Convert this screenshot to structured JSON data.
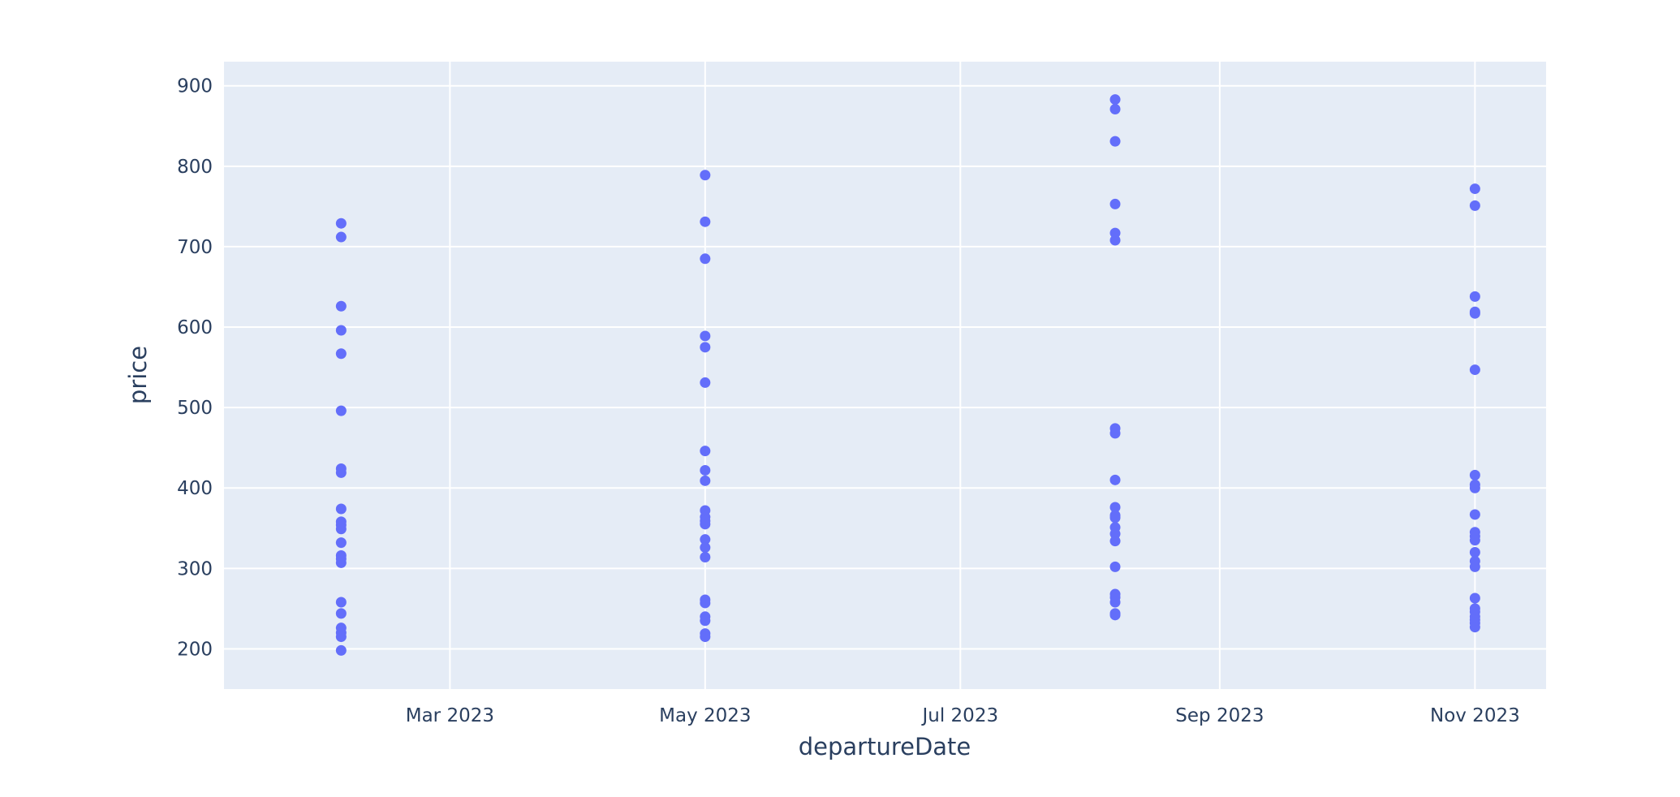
{
  "chart_data": {
    "type": "scatter",
    "title": "",
    "xlabel": "departureDate",
    "ylabel": "price",
    "x_axis_type": "date",
    "xlim": [
      "2023-01-06",
      "2023-11-18"
    ],
    "ylim": [
      150,
      930
    ],
    "grid": true,
    "legend": "none",
    "x_ticks": [
      {
        "value": "2023-03-01",
        "label": "Mar 2023"
      },
      {
        "value": "2023-05-01",
        "label": "May 2023"
      },
      {
        "value": "2023-07-01",
        "label": "Jul 2023"
      },
      {
        "value": "2023-09-01",
        "label": "Sep 2023"
      },
      {
        "value": "2023-11-01",
        "label": "Nov 2023"
      }
    ],
    "y_ticks": [
      {
        "value": 200,
        "label": "200"
      },
      {
        "value": 300,
        "label": "300"
      },
      {
        "value": 400,
        "label": "400"
      },
      {
        "value": 500,
        "label": "500"
      },
      {
        "value": 600,
        "label": "600"
      },
      {
        "value": 700,
        "label": "700"
      },
      {
        "value": 800,
        "label": "800"
      },
      {
        "value": 900,
        "label": "900"
      }
    ],
    "colors": {
      "marker": "#636efa",
      "plot_background": "#e5ecf6",
      "grid": "#ffffff",
      "text": "#2a3f5f"
    },
    "series": [
      {
        "x": "2023-02-03",
        "y": [
          729,
          712,
          626,
          596,
          567,
          496,
          424,
          419,
          374,
          358,
          354,
          349,
          332,
          316,
          312,
          307,
          258,
          244,
          226,
          220,
          215,
          198
        ]
      },
      {
        "x": "2023-05-01",
        "y": [
          789,
          731,
          685,
          589,
          575,
          531,
          446,
          422,
          409,
          372,
          364,
          359,
          355,
          336,
          326,
          314,
          261,
          257,
          240,
          235,
          219,
          215
        ]
      },
      {
        "x": "2023-08-07",
        "y": [
          883,
          871,
          831,
          753,
          717,
          708,
          474,
          468,
          410,
          376,
          366,
          363,
          351,
          343,
          334,
          302,
          268,
          264,
          258,
          244,
          242
        ]
      },
      {
        "x": "2023-11-01",
        "y": [
          772,
          751,
          638,
          619,
          617,
          547,
          416,
          404,
          400,
          367,
          345,
          340,
          335,
          320,
          309,
          302,
          263,
          250,
          246,
          240,
          236,
          232,
          227
        ]
      }
    ]
  }
}
